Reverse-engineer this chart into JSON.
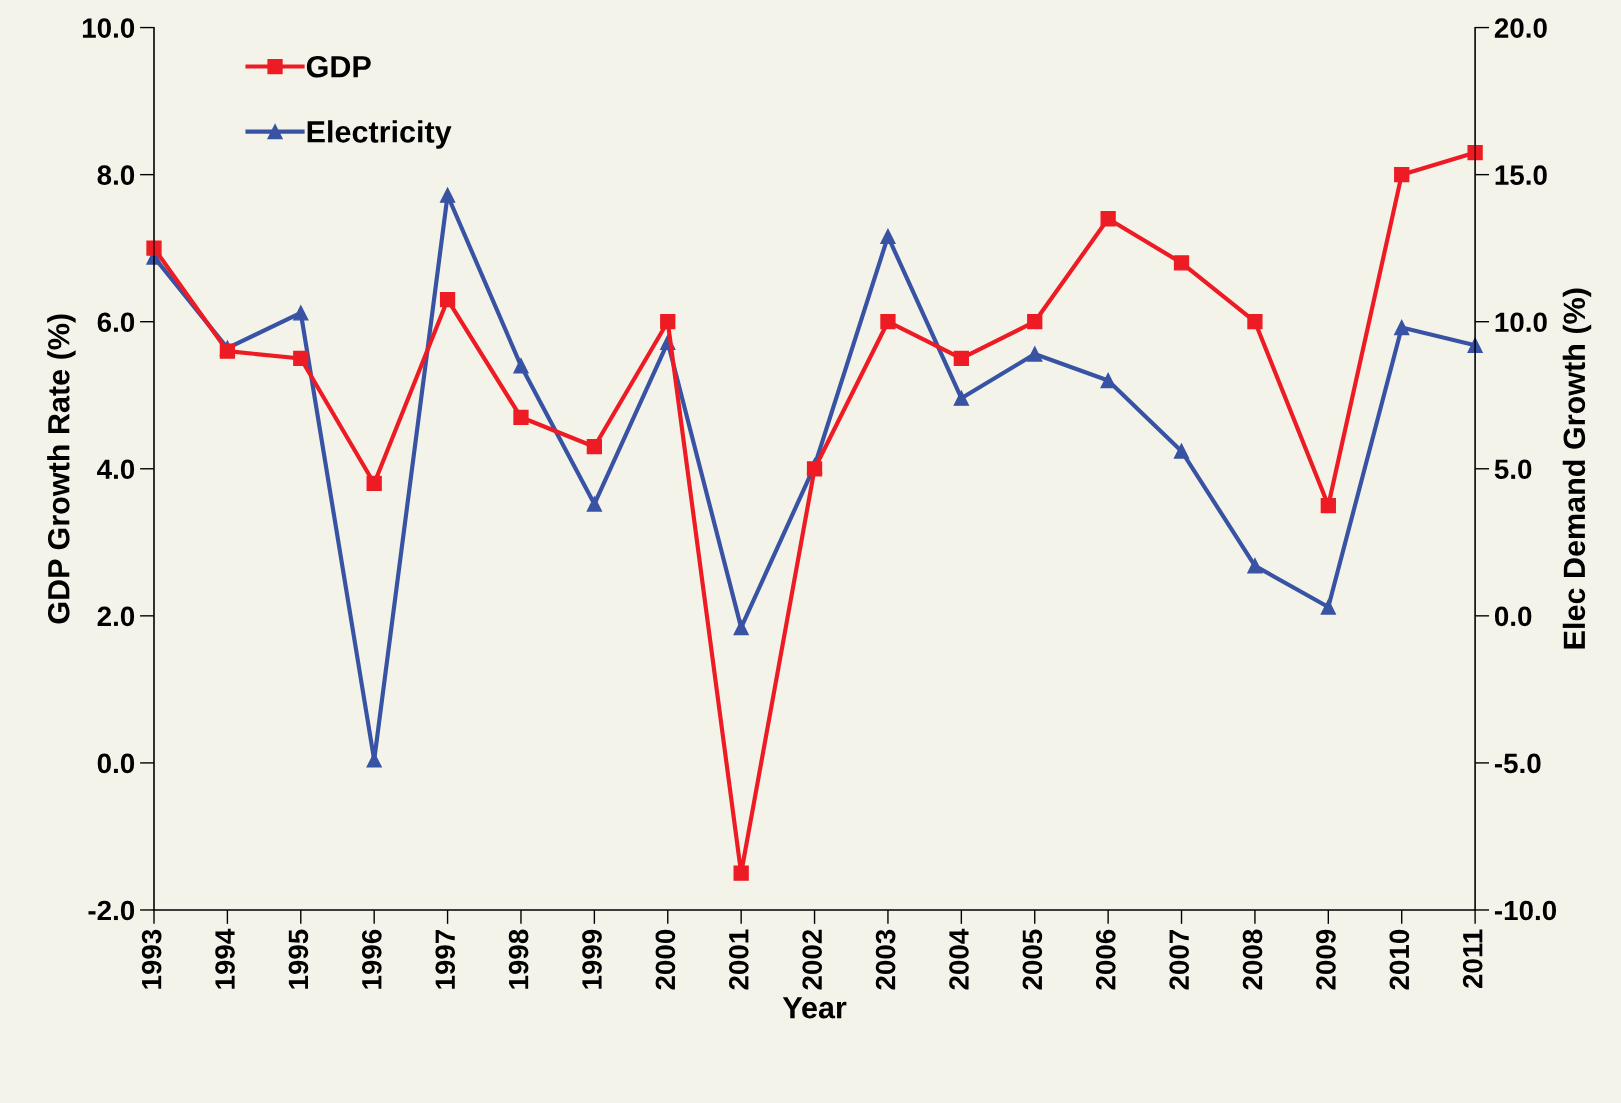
{
  "chart_data": {
    "type": "line",
    "xlabel": "Year",
    "ylabel": "GDP Growth Rate (%)",
    "y2label": "Elec Demand Growth (%)",
    "categories": [
      "1993",
      "1994",
      "1995",
      "1996",
      "1997",
      "1998",
      "1999",
      "2000",
      "2001",
      "2002",
      "2003",
      "2004",
      "2005",
      "2006",
      "2007",
      "2008",
      "2009",
      "2010",
      "2011"
    ],
    "series": [
      {
        "name": "GDP",
        "color": "#ed1c24",
        "marker": "square",
        "values": [
          7.0,
          5.6,
          5.5,
          3.8,
          6.3,
          4.7,
          4.3,
          6.0,
          -1.5,
          4.0,
          6.0,
          5.5,
          6.0,
          7.4,
          6.8,
          6.0,
          3.5,
          8.0,
          8.3
        ]
      },
      {
        "name": "Electricity",
        "color": "#3953a4",
        "marker": "triangle",
        "axis": "y2",
        "values": [
          12.2,
          9.1,
          10.3,
          -4.9,
          14.3,
          8.5,
          3.8,
          9.3,
          -0.4,
          5.1,
          12.9,
          7.4,
          8.9,
          8.0,
          5.6,
          1.7,
          0.3,
          9.8,
          9.2
        ]
      }
    ],
    "ylim": [
      -2,
      10
    ],
    "yticks": [
      {
        "value": -2,
        "label": "-2.0"
      },
      {
        "value": 0,
        "label": "0.0"
      },
      {
        "value": 2,
        "label": "2.0"
      },
      {
        "value": 4,
        "label": "4.0"
      },
      {
        "value": 6,
        "label": "6.0"
      },
      {
        "value": 8,
        "label": "8.0"
      },
      {
        "value": 10,
        "label": "10.0"
      }
    ],
    "y2lim": [
      -10,
      20
    ],
    "y2ticks": [
      {
        "value": -10,
        "label": "-10.0"
      },
      {
        "value": -5,
        "label": "-5.0"
      },
      {
        "value": 0,
        "label": "0.0"
      },
      {
        "value": 5,
        "label": "5.0"
      },
      {
        "value": 10,
        "label": "10.0"
      },
      {
        "value": 15,
        "label": "15.0"
      },
      {
        "value": 20,
        "label": "20.0"
      }
    ],
    "legend": "top left",
    "grid": false,
    "line_style": "solid"
  }
}
